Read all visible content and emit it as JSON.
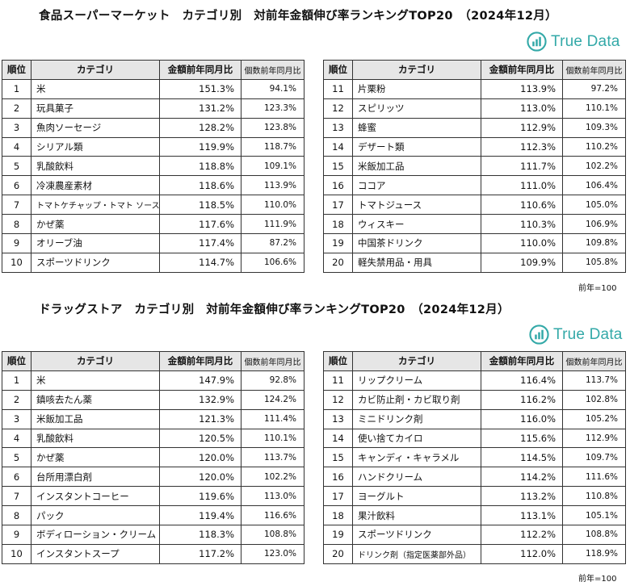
{
  "supermarket": {
    "title": "食品スーパーマーケット　カテゴリ別　対前年金額伸び率ランキングTOP20　（2024年12月）",
    "logo_text": "True Data",
    "headers": {
      "rank": "順位",
      "category": "カテゴリ",
      "amount": "金額前年同月比",
      "count": "個数前年同月比"
    },
    "rows_left": [
      {
        "rank": "1",
        "category": "米",
        "amount": "151.3%",
        "count": "94.1%"
      },
      {
        "rank": "2",
        "category": "玩具菓子",
        "amount": "131.2%",
        "count": "123.3%"
      },
      {
        "rank": "3",
        "category": "魚肉ソーセージ",
        "amount": "128.2%",
        "count": "123.8%"
      },
      {
        "rank": "4",
        "category": "シリアル類",
        "amount": "119.9%",
        "count": "118.7%"
      },
      {
        "rank": "5",
        "category": "乳酸飲料",
        "amount": "118.8%",
        "count": "109.1%"
      },
      {
        "rank": "6",
        "category": "冷凍農産素材",
        "amount": "118.6%",
        "count": "113.9%"
      },
      {
        "rank": "7",
        "category": "トマトケチャップ・トマト ソース",
        "amount": "118.5%",
        "count": "110.0%"
      },
      {
        "rank": "8",
        "category": "かぜ薬",
        "amount": "117.6%",
        "count": "111.9%"
      },
      {
        "rank": "9",
        "category": "オリーブ油",
        "amount": "117.4%",
        "count": "87.2%"
      },
      {
        "rank": "10",
        "category": "スポーツドリンク",
        "amount": "114.7%",
        "count": "106.6%"
      }
    ],
    "rows_right": [
      {
        "rank": "11",
        "category": "片栗粉",
        "amount": "113.9%",
        "count": "97.2%"
      },
      {
        "rank": "12",
        "category": "スピリッツ",
        "amount": "113.0%",
        "count": "110.1%"
      },
      {
        "rank": "13",
        "category": "蜂蜜",
        "amount": "112.9%",
        "count": "109.3%"
      },
      {
        "rank": "14",
        "category": "デザート類",
        "amount": "112.3%",
        "count": "110.2%"
      },
      {
        "rank": "15",
        "category": "米飯加工品",
        "amount": "111.7%",
        "count": "102.2%"
      },
      {
        "rank": "16",
        "category": "ココア",
        "amount": "111.0%",
        "count": "106.4%"
      },
      {
        "rank": "17",
        "category": "トマトジュース",
        "amount": "110.6%",
        "count": "105.0%"
      },
      {
        "rank": "18",
        "category": "ウィスキー",
        "amount": "110.3%",
        "count": "106.9%"
      },
      {
        "rank": "19",
        "category": "中国茶ドリンク",
        "amount": "110.0%",
        "count": "109.8%"
      },
      {
        "rank": "20",
        "category": "軽失禁用品・用具",
        "amount": "109.9%",
        "count": "105.8%"
      }
    ],
    "note": "前年=100"
  },
  "drugstore": {
    "title": "ドラッグストア　カテゴリ別　対前年金額伸び率ランキングTOP20　（2024年12月）",
    "logo_text": "True Data",
    "headers": {
      "rank": "順位",
      "category": "カテゴリ",
      "amount": "金額前年同月比",
      "count": "個数前年同月比"
    },
    "rows_left": [
      {
        "rank": "1",
        "category": "米",
        "amount": "147.9%",
        "count": "92.8%"
      },
      {
        "rank": "2",
        "category": "鎮咳去たん薬",
        "amount": "132.9%",
        "count": "124.2%"
      },
      {
        "rank": "3",
        "category": "米飯加工品",
        "amount": "121.3%",
        "count": "111.4%"
      },
      {
        "rank": "4",
        "category": "乳酸飲料",
        "amount": "120.5%",
        "count": "110.1%"
      },
      {
        "rank": "5",
        "category": "かぜ薬",
        "amount": "120.0%",
        "count": "113.7%"
      },
      {
        "rank": "6",
        "category": "台所用漂白剤",
        "amount": "120.0%",
        "count": "102.2%"
      },
      {
        "rank": "7",
        "category": "インスタントコーヒー",
        "amount": "119.6%",
        "count": "113.0%"
      },
      {
        "rank": "8",
        "category": "パック",
        "amount": "119.4%",
        "count": "116.6%"
      },
      {
        "rank": "9",
        "category": "ボディローション・クリーム",
        "amount": "118.3%",
        "count": "108.8%"
      },
      {
        "rank": "10",
        "category": "インスタントスープ",
        "amount": "117.2%",
        "count": "123.0%"
      }
    ],
    "rows_right": [
      {
        "rank": "11",
        "category": "リップクリーム",
        "amount": "116.4%",
        "count": "113.7%"
      },
      {
        "rank": "12",
        "category": "カビ防止剤・カビ取り剤",
        "amount": "116.2%",
        "count": "102.8%"
      },
      {
        "rank": "13",
        "category": "ミニドリンク剤",
        "amount": "116.0%",
        "count": "105.2%"
      },
      {
        "rank": "14",
        "category": "使い捨てカイロ",
        "amount": "115.6%",
        "count": "112.9%"
      },
      {
        "rank": "15",
        "category": "キャンディ・キャラメル",
        "amount": "114.5%",
        "count": "109.7%"
      },
      {
        "rank": "16",
        "category": "ハンドクリーム",
        "amount": "114.2%",
        "count": "111.6%"
      },
      {
        "rank": "17",
        "category": "ヨーグルト",
        "amount": "113.2%",
        "count": "110.8%"
      },
      {
        "rank": "18",
        "category": "果汁飲料",
        "amount": "113.1%",
        "count": "105.1%"
      },
      {
        "rank": "19",
        "category": "スポーツドリンク",
        "amount": "112.2%",
        "count": "108.8%"
      },
      {
        "rank": "20",
        "category": "ドリンク剤（指定医薬部外品）",
        "amount": "112.0%",
        "count": "118.9%"
      }
    ],
    "note": "前年=100"
  },
  "colors": {
    "logo": "#33a9a8",
    "header_bg": "#e6e6e6",
    "border": "#333333"
  }
}
